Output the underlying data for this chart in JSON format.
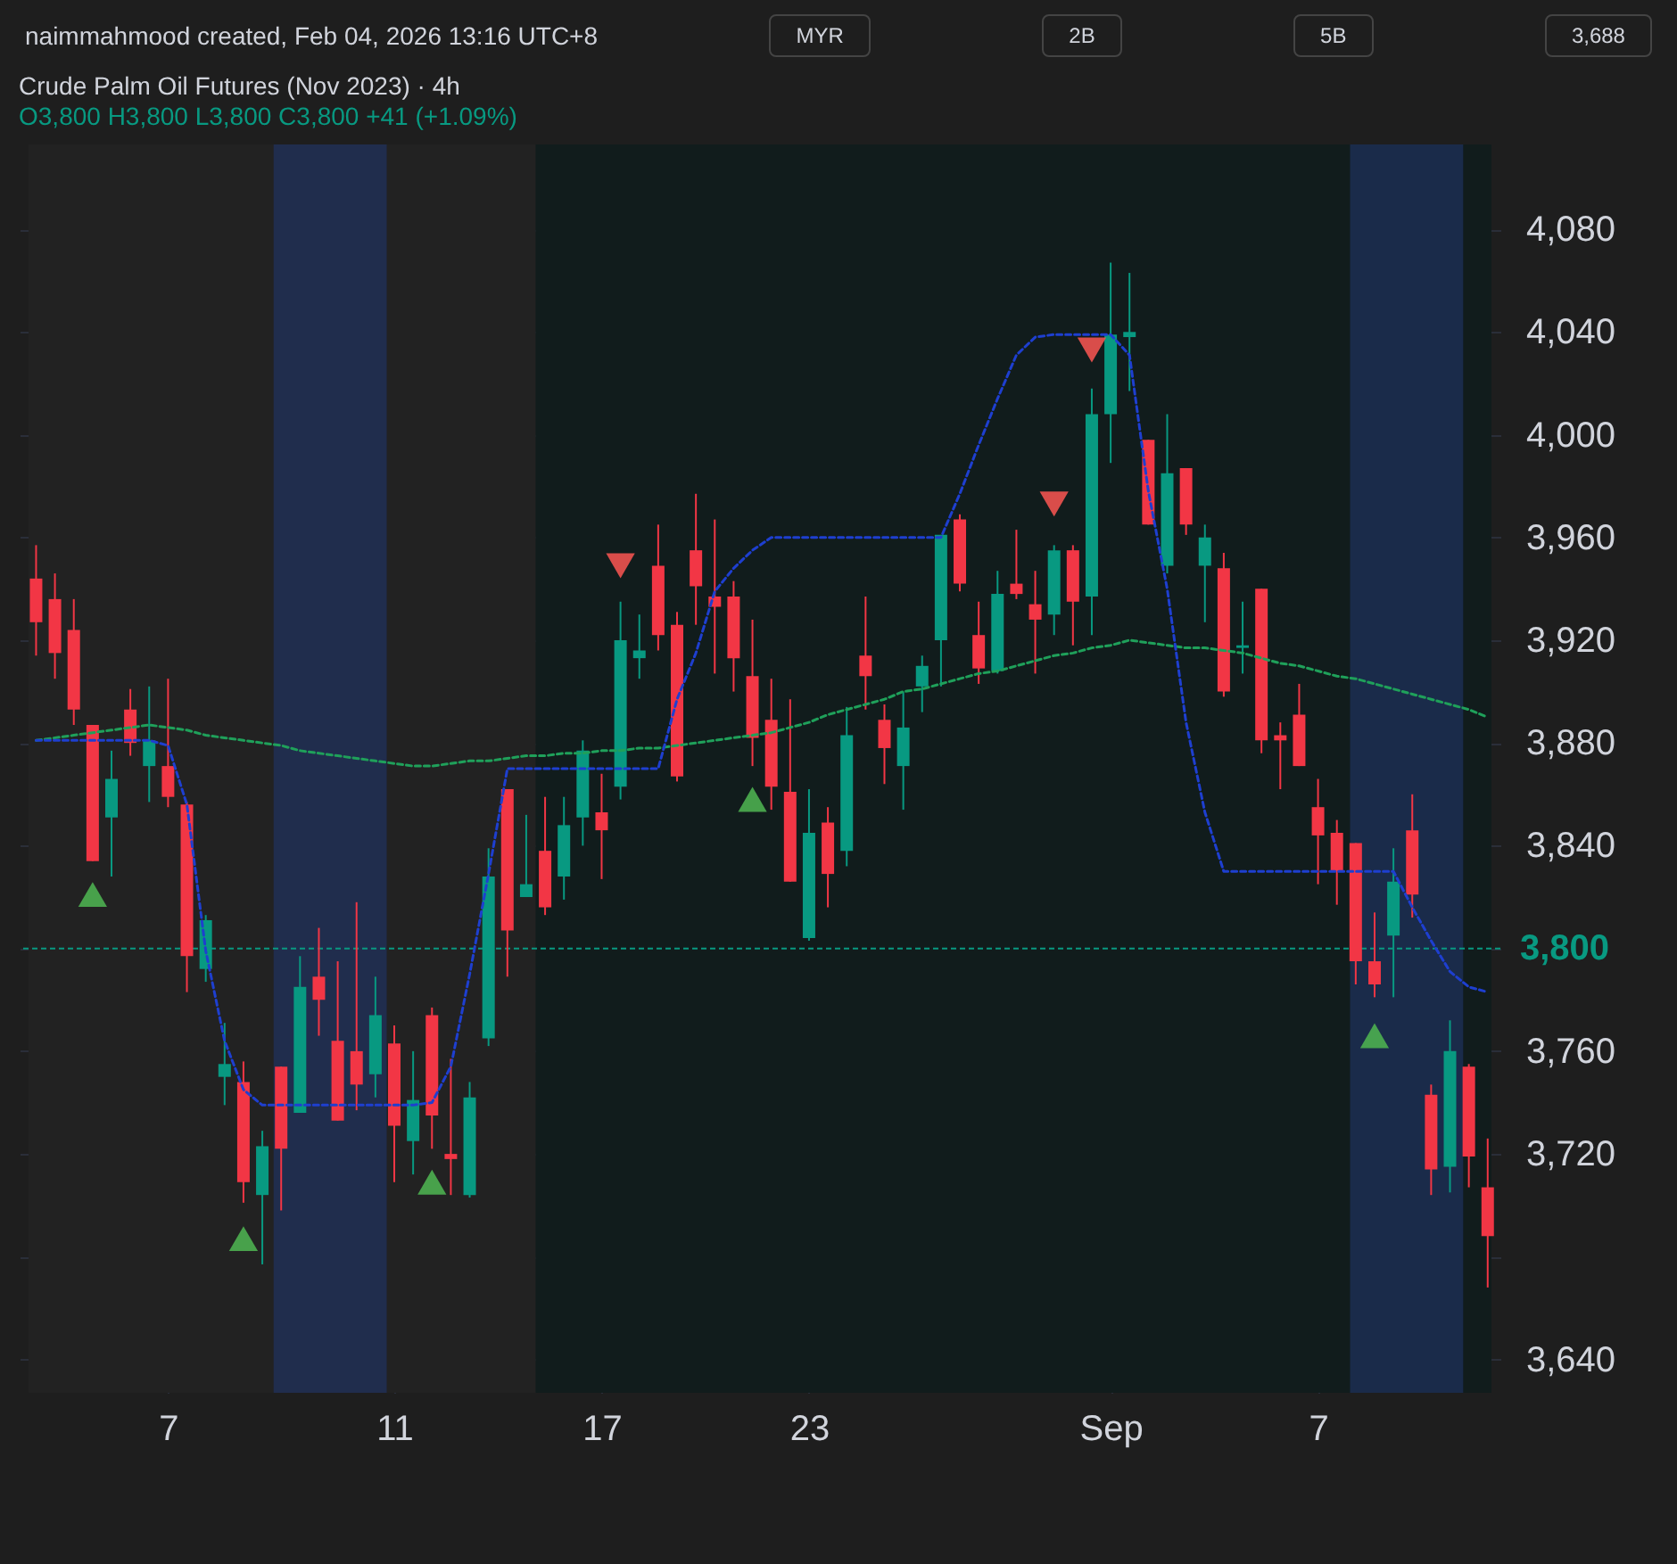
{
  "chart_data": {
    "type": "candlestick",
    "title": "Crude Palm Oil Futures (Nov 2023) · 4h",
    "subtitle": "O3,800 H3,800 L3,800 C3,800 +41 (+1.09%)",
    "annotations": [
      "naimmahmood created, Feb 04, 2026 13:16 UTC+8",
      "MYR",
      "2B",
      "5B",
      "3,688"
    ],
    "categories": [
      null,
      null,
      null,
      null,
      null,
      null,
      null,
      "7",
      null,
      null,
      null,
      null,
      null,
      null,
      null,
      null,
      null,
      null,
      null,
      "11",
      null,
      null,
      null,
      null,
      null,
      null,
      null,
      null,
      null,
      null,
      "17",
      null,
      null,
      null,
      null,
      null,
      null,
      null,
      null,
      null,
      null,
      "23",
      null,
      null,
      null,
      null,
      null,
      null,
      null,
      null,
      null,
      null,
      null,
      null,
      null,
      null,
      null,
      "Sep",
      null,
      null,
      null,
      null,
      null,
      null,
      null,
      null,
      null,
      null,
      "7",
      null,
      null,
      null,
      null,
      null,
      null,
      null,
      null,
      null
    ],
    "ohlc": [
      [
        3944,
        3957,
        3914,
        3927
      ],
      [
        3936,
        3946,
        3905,
        3915
      ],
      [
        3924,
        3936,
        3887,
        3893
      ],
      [
        3887,
        3887,
        3834,
        3834
      ],
      [
        3851,
        3877,
        3828,
        3866
      ],
      [
        3893,
        3901,
        3875,
        3880
      ],
      [
        3871,
        3902,
        3857,
        3881
      ],
      [
        3871,
        3905,
        3855,
        3859
      ],
      [
        3856,
        3857,
        3783,
        3797
      ],
      [
        3792,
        3813,
        3787,
        3811
      ],
      [
        3750,
        3771,
        3739,
        3755
      ],
      [
        3748,
        3756,
        3701,
        3709
      ],
      [
        3704,
        3729,
        3677,
        3723
      ],
      [
        3754,
        3754,
        3698,
        3722
      ],
      [
        3736,
        3797,
        3736,
        3785
      ],
      [
        3789,
        3808,
        3766,
        3780
      ],
      [
        3764,
        3795,
        3733,
        3733
      ],
      [
        3760,
        3818,
        3737,
        3747
      ],
      [
        3751,
        3789,
        3742,
        3774
      ],
      [
        3763,
        3770,
        3709,
        3731
      ],
      [
        3725,
        3760,
        3712,
        3741
      ],
      [
        3774,
        3777,
        3722,
        3735
      ],
      [
        3720,
        3757,
        3704,
        3718
      ],
      [
        3704,
        3748,
        3703,
        3742
      ],
      [
        3765,
        3839,
        3762,
        3828
      ],
      [
        3862,
        3862,
        3789,
        3807
      ],
      [
        3820,
        3852,
        3820,
        3825
      ],
      [
        3838,
        3859,
        3813,
        3816
      ],
      [
        3828,
        3859,
        3819,
        3848
      ],
      [
        3851,
        3881,
        3840,
        3877
      ],
      [
        3853,
        3868,
        3827,
        3846
      ],
      [
        3863,
        3935,
        3858,
        3920
      ],
      [
        3913,
        3930,
        3905,
        3916
      ],
      [
        3949,
        3965,
        3916,
        3922
      ],
      [
        3926,
        3931,
        3865,
        3867
      ],
      [
        3955,
        3977,
        3926,
        3941
      ],
      [
        3937,
        3967,
        3907,
        3933
      ],
      [
        3937,
        3943,
        3900,
        3913
      ],
      [
        3906,
        3928,
        3871,
        3882
      ],
      [
        3889,
        3905,
        3854,
        3863
      ],
      [
        3861,
        3897,
        3826,
        3826
      ],
      [
        3804,
        3862,
        3803,
        3845
      ],
      [
        3849,
        3855,
        3816,
        3829
      ],
      [
        3838,
        3894,
        3832,
        3883
      ],
      [
        3914,
        3937,
        3893,
        3906
      ],
      [
        3889,
        3895,
        3864,
        3878
      ],
      [
        3871,
        3900,
        3854,
        3886
      ],
      [
        3902,
        3914,
        3892,
        3910
      ],
      [
        3920,
        3961,
        3902,
        3961
      ],
      [
        3967,
        3969,
        3939,
        3942
      ],
      [
        3922,
        3935,
        3903,
        3909
      ],
      [
        3908,
        3947,
        3907,
        3938
      ],
      [
        3942,
        3963,
        3936,
        3938
      ],
      [
        3934,
        3947,
        3907,
        3928
      ],
      [
        3930,
        3957,
        3922,
        3955
      ],
      [
        3955,
        3957,
        3918,
        3935
      ],
      [
        3937,
        4018,
        3922,
        4008
      ],
      [
        4008,
        4067,
        3989,
        4039
      ],
      [
        4038,
        4063,
        4017,
        4040
      ],
      [
        3998,
        3998,
        3965,
        3965
      ],
      [
        3949,
        4008,
        3946,
        3985
      ],
      [
        3987,
        3987,
        3961,
        3965
      ],
      [
        3949,
        3965,
        3927,
        3960
      ],
      [
        3948,
        3954,
        3898,
        3900
      ],
      [
        3917,
        3935,
        3907,
        3918
      ],
      [
        3940,
        3940,
        3876,
        3881
      ],
      [
        3883,
        3888,
        3862,
        3881
      ],
      [
        3891,
        3903,
        3871,
        3871
      ],
      [
        3855,
        3866,
        3825,
        3844
      ],
      [
        3845,
        3850,
        3817,
        3830
      ],
      [
        3841,
        3841,
        3786,
        3795
      ],
      [
        3795,
        3814,
        3781,
        3786
      ],
      [
        3805,
        3839,
        3781,
        3826
      ],
      [
        3846,
        3860,
        3812,
        3821
      ],
      [
        3743,
        3747,
        3704,
        3714
      ],
      [
        3715,
        3772,
        3705,
        3760
      ],
      [
        3754,
        3755,
        3707,
        3719
      ],
      [
        3707,
        3726,
        3668,
        3688
      ]
    ],
    "colors": [
      "#f23645",
      "#f23645",
      "#f23645",
      "#f23645",
      "#089981",
      "#f23645",
      "#089981",
      "#f23645",
      "#f23645",
      "#089981",
      "#089981",
      "#f23645",
      "#089981",
      "#f23645",
      "#089981",
      "#f23645",
      "#f23645",
      "#f23645",
      "#089981",
      "#f23645",
      "#089981",
      "#f23645",
      "#f23645",
      "#089981",
      "#089981",
      "#f23645",
      "#089981",
      "#f23645",
      "#089981",
      "#089981",
      "#f23645",
      "#089981",
      "#089981",
      "#f23645",
      "#f23645",
      "#f23645",
      "#f23645",
      "#f23645",
      "#f23645",
      "#f23645",
      "#f23645",
      "#089981",
      "#f23645",
      "#089981",
      "#f23645",
      "#f23645",
      "#089981",
      "#089981",
      "#089981",
      "#f23645",
      "#f23645",
      "#089981",
      "#f23645",
      "#f23645",
      "#089981",
      "#f23645",
      "#089981",
      "#089981",
      "#089981",
      "#f23645",
      "#089981",
      "#f23645",
      "#089981",
      "#f23645",
      "#089981",
      "#f23645",
      "#f23645",
      "#f23645",
      "#f23645",
      "#f23645",
      "#f23645",
      "#f23645",
      "#089981",
      "#f23645",
      "#f23645",
      "#089981",
      "#f23645",
      "#f23645"
    ],
    "series": [
      {
        "type": "line",
        "color": "#1fa05a",
        "line_style": "dotted",
        "values": [
          3881,
          3882,
          3883,
          3884,
          3885,
          3886,
          3887,
          3886,
          3885,
          3883,
          3882,
          3881,
          3880,
          3879,
          3877,
          3876,
          3875,
          3874,
          3873,
          3872,
          3871,
          3871,
          3872,
          3873,
          3873,
          3874,
          3875,
          3875,
          3876,
          3876,
          3877,
          3877,
          3878,
          3878,
          3879,
          3880,
          3881,
          3882,
          3883,
          3884,
          3886,
          3888,
          3891,
          3893,
          3895,
          3897,
          3900,
          3901,
          3903,
          3905,
          3907,
          3908,
          3910,
          3912,
          3914,
          3915,
          3917,
          3918,
          3920,
          3919,
          3918,
          3917,
          3917,
          3916,
          3915,
          3913,
          3911,
          3910,
          3908,
          3906,
          3905,
          3903,
          3901,
          3899,
          3897,
          3895,
          3893,
          3890
        ]
      },
      {
        "type": "line",
        "color": "#1e3fd0",
        "line_style": "dotted",
        "values": [
          3881,
          3881,
          3881,
          3881,
          3881,
          3881,
          3881,
          3879,
          3856,
          3799,
          3764,
          3745,
          3739,
          3739,
          3739,
          3739,
          3739,
          3739,
          3739,
          3739,
          3739,
          3740,
          3754,
          3790,
          3829,
          3870,
          3870,
          3870,
          3870,
          3870,
          3870,
          3870,
          3870,
          3870,
          3897,
          3915,
          3939,
          3948,
          3955,
          3960,
          3960,
          3960,
          3960,
          3960,
          3960,
          3960,
          3960,
          3960,
          3960,
          3977,
          3996,
          4014,
          4031,
          4038,
          4039,
          4039,
          4039,
          4039,
          4031,
          3978,
          3940,
          3888,
          3853,
          3830,
          3830,
          3830,
          3830,
          3830,
          3830,
          3830,
          3830,
          3830,
          3830,
          3816,
          3803,
          3791,
          3785,
          3783
        ]
      },
      {
        "type": "scatter",
        "color": "#4caf50",
        "marker": "triangle",
        "values": [
          null,
          null,
          null,
          3821,
          null,
          null,
          null,
          null,
          null,
          null,
          null,
          3687,
          null,
          null,
          null,
          null,
          null,
          null,
          null,
          null,
          null,
          3709,
          null,
          null,
          null,
          null,
          null,
          null,
          null,
          null,
          null,
          null,
          null,
          null,
          null,
          null,
          null,
          null,
          3858,
          null,
          null,
          null,
          null,
          null,
          null,
          null,
          null,
          null,
          null,
          null,
          null,
          null,
          null,
          null,
          null,
          null,
          null,
          null,
          null,
          null,
          null,
          null,
          null,
          null,
          null,
          null,
          null,
          null,
          null,
          null,
          null,
          3766,
          null,
          null,
          null,
          null,
          null,
          null
        ]
      },
      {
        "type": "scatter",
        "color": "#ef5350",
        "marker": "triangle-down",
        "values": [
          null,
          null,
          null,
          null,
          null,
          null,
          null,
          null,
          null,
          null,
          null,
          null,
          null,
          null,
          null,
          null,
          null,
          null,
          null,
          null,
          null,
          null,
          null,
          null,
          null,
          null,
          null,
          null,
          null,
          null,
          null,
          3949,
          null,
          null,
          null,
          null,
          null,
          null,
          null,
          null,
          null,
          null,
          null,
          null,
          null,
          null,
          null,
          null,
          null,
          null,
          null,
          null,
          null,
          null,
          3973,
          null,
          4033,
          null,
          null,
          null,
          null,
          null,
          null,
          null,
          null,
          null,
          null,
          null,
          null,
          null,
          null,
          null,
          null,
          null,
          null,
          null,
          null,
          null
        ]
      }
    ],
    "ref_lines": [
      {
        "axis": "y",
        "value": 3800,
        "label": "3,800",
        "color": "#089981",
        "line_style": "dotted"
      }
    ],
    "ylim": [
      3627,
      4113
    ],
    "yticks": [
      {
        "value": 3640,
        "label": "3,640"
      },
      {
        "value": 3680,
        "label": null
      },
      {
        "value": 3720,
        "label": "3,720"
      },
      {
        "value": 3760,
        "label": "3,760"
      },
      {
        "value": 3800,
        "label": null
      },
      {
        "value": 3840,
        "label": "3,840"
      },
      {
        "value": 3880,
        "label": "3,880"
      },
      {
        "value": 3920,
        "label": "3,920"
      },
      {
        "value": 3960,
        "label": "3,960"
      },
      {
        "value": 4000,
        "label": "4,000"
      },
      {
        "value": 4040,
        "label": "4,040"
      },
      {
        "value": 4080,
        "label": "4,080"
      }
    ],
    "grid": true
  }
}
